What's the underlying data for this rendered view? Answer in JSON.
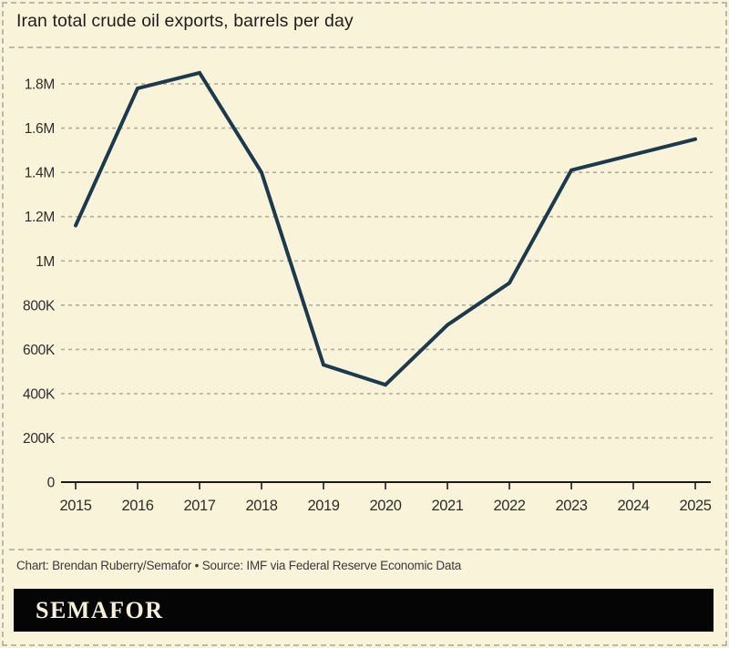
{
  "header": {
    "title": "Iran total crude oil exports, barrels per day"
  },
  "chart_data": {
    "type": "line",
    "title": "Iran total crude oil exports, barrels per day",
    "x": [
      2015,
      2016,
      2017,
      2018,
      2019,
      2020,
      2021,
      2022,
      2023,
      2024,
      2025
    ],
    "series": [
      {
        "name": "Iran total crude oil exports (barrels per day)",
        "values": [
          1160000,
          1780000,
          1850000,
          1400000,
          530000,
          440000,
          710000,
          900000,
          1410000,
          1480000,
          1550000
        ],
        "color": "#1c3a4d"
      }
    ],
    "xlabel": "",
    "ylabel": "barrels per day",
    "ylim": [
      0,
      1900000
    ],
    "ytick_interval": 200000,
    "ytick_labels": [
      "0",
      "200K",
      "400K",
      "600K",
      "800K",
      "1M",
      "1.2M",
      "1.4M",
      "1.6M",
      "1.8M"
    ],
    "grid": "horizontal-dashed",
    "legend": "none"
  },
  "footer": {
    "credit": "Chart: Brendan Ruberry/Semafor • Source: IMF via Federal Reserve Economic Data",
    "logo": "SEMAFOR"
  },
  "colors": {
    "background": "#f9f4d9",
    "line": "#1c3a4d",
    "grid": "#b3ae9f",
    "axis": "#1a1a1a",
    "logo_bar": "#050505",
    "logo_text": "#f7f0d8"
  }
}
